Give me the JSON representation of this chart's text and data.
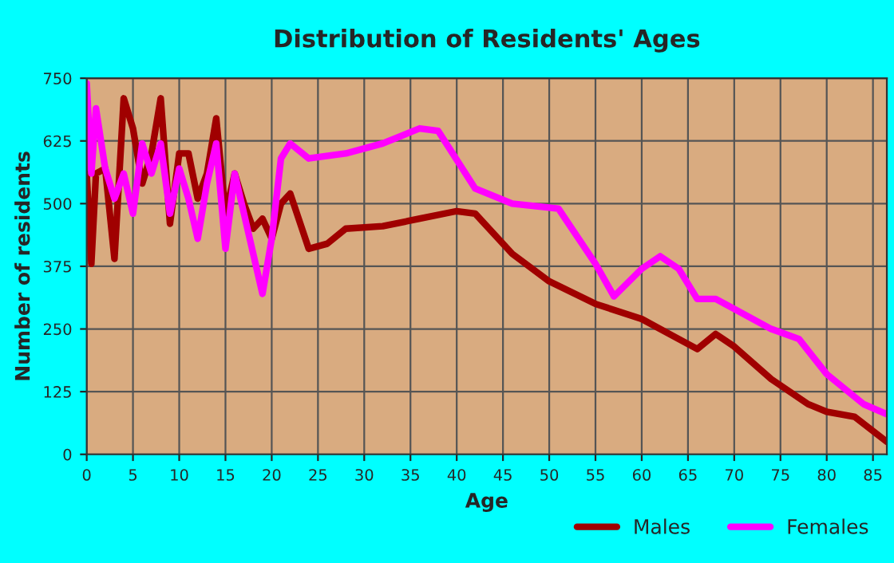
{
  "chart_data": {
    "type": "line",
    "title": "Distribution of Residents' Ages",
    "xlabel": "Age",
    "ylabel": "Number of residents",
    "xlim": [
      0,
      86.5
    ],
    "ylim": [
      0,
      750
    ],
    "xticks": [
      0,
      5,
      10,
      15,
      20,
      25,
      30,
      35,
      40,
      45,
      50,
      55,
      60,
      65,
      70,
      75,
      80,
      85
    ],
    "yticks": [
      0,
      125,
      250,
      375,
      500,
      625,
      750
    ],
    "grid": true,
    "legend": "bottom right",
    "line_style": "solid",
    "marker": "none",
    "series": [
      {
        "name": "Males",
        "color": "#a00000",
        "x": [
          0,
          0.5,
          1,
          2,
          3,
          4,
          5,
          6,
          7,
          8,
          9,
          10,
          11,
          12,
          13,
          14,
          15,
          16,
          17,
          18,
          19,
          20,
          21,
          22,
          24,
          26,
          28,
          32,
          36,
          40,
          42,
          46,
          50,
          55,
          60,
          63,
          66,
          68,
          70,
          74,
          78,
          80,
          83,
          86.5
        ],
        "values": [
          560,
          380,
          560,
          570,
          390,
          710,
          650,
          540,
          600,
          710,
          460,
          600,
          600,
          510,
          560,
          670,
          480,
          560,
          500,
          450,
          470,
          430,
          500,
          520,
          410,
          420,
          450,
          455,
          470,
          485,
          480,
          400,
          345,
          300,
          270,
          240,
          210,
          240,
          215,
          150,
          100,
          85,
          75,
          25
        ]
      },
      {
        "name": "Females",
        "color": "#ff00ff",
        "x": [
          0,
          0.5,
          1,
          2,
          3,
          4,
          5,
          6,
          7,
          8,
          9,
          10,
          11,
          12,
          13,
          14,
          15,
          16,
          17,
          18,
          19,
          20,
          21,
          22,
          24,
          28,
          32,
          36,
          38,
          42,
          46,
          51,
          55,
          57,
          60,
          62,
          64,
          66,
          68,
          70,
          74,
          77,
          80,
          84,
          86.5
        ],
        "values": [
          740,
          560,
          690,
          570,
          510,
          560,
          480,
          620,
          560,
          620,
          480,
          570,
          510,
          430,
          540,
          620,
          410,
          560,
          480,
          400,
          320,
          430,
          590,
          620,
          590,
          600,
          620,
          650,
          645,
          530,
          500,
          490,
          380,
          315,
          370,
          395,
          370,
          310,
          310,
          290,
          250,
          230,
          160,
          100,
          80
        ]
      }
    ]
  }
}
